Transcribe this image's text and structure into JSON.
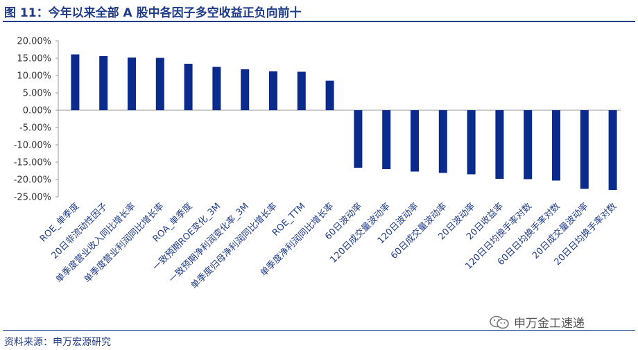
{
  "header": {
    "title": "图 11：今年以来全部 A 股中各因子多空收益正负向前十"
  },
  "footer": {
    "source": "资料来源：申万宏源研究",
    "watermark": "申万金工速递",
    "watermark_icon": "wechat-icon"
  },
  "colors": {
    "bar": "#0b2b8c",
    "accent": "#1f3c88",
    "axis": "#999999"
  },
  "chart_data": {
    "type": "bar",
    "title": "",
    "xlabel": "",
    "ylabel": "",
    "ylim": [
      -0.25,
      0.2
    ],
    "yticks": [
      0.2,
      0.15,
      0.1,
      0.05,
      0.0,
      -0.05,
      -0.1,
      -0.15,
      -0.2,
      -0.25
    ],
    "ytick_labels": [
      "20.00%",
      "15.00%",
      "10.00%",
      "5.00%",
      "0.00%",
      "-5.00%",
      "-10.00%",
      "-15.00%",
      "-20.00%",
      "-25.00%"
    ],
    "grid": false,
    "categories": [
      "ROE_单季度",
      "20日非流动性因子",
      "单季度营业收入同比增长率",
      "单季度营业利润同比增长率",
      "ROA_单季度",
      "一致预期ROE变化_3M",
      "一致预期净利润变化率_3M",
      "单季度归母净利润同比增长率",
      "ROE_TTM",
      "单季度净利润同比增长率",
      "60日波动率",
      "120日成交量波动率",
      "120日波动率",
      "60日成交量波动率",
      "20日波动率",
      "20日收益率",
      "120日日均换手率对数",
      "60日日均换手率对数",
      "20日成交量波动率",
      "20日日均换手率对数"
    ],
    "values": [
      0.161,
      0.156,
      0.152,
      0.151,
      0.134,
      0.125,
      0.118,
      0.112,
      0.111,
      0.085,
      -0.166,
      -0.17,
      -0.177,
      -0.181,
      -0.185,
      -0.198,
      -0.199,
      -0.203,
      -0.227,
      -0.23
    ]
  }
}
